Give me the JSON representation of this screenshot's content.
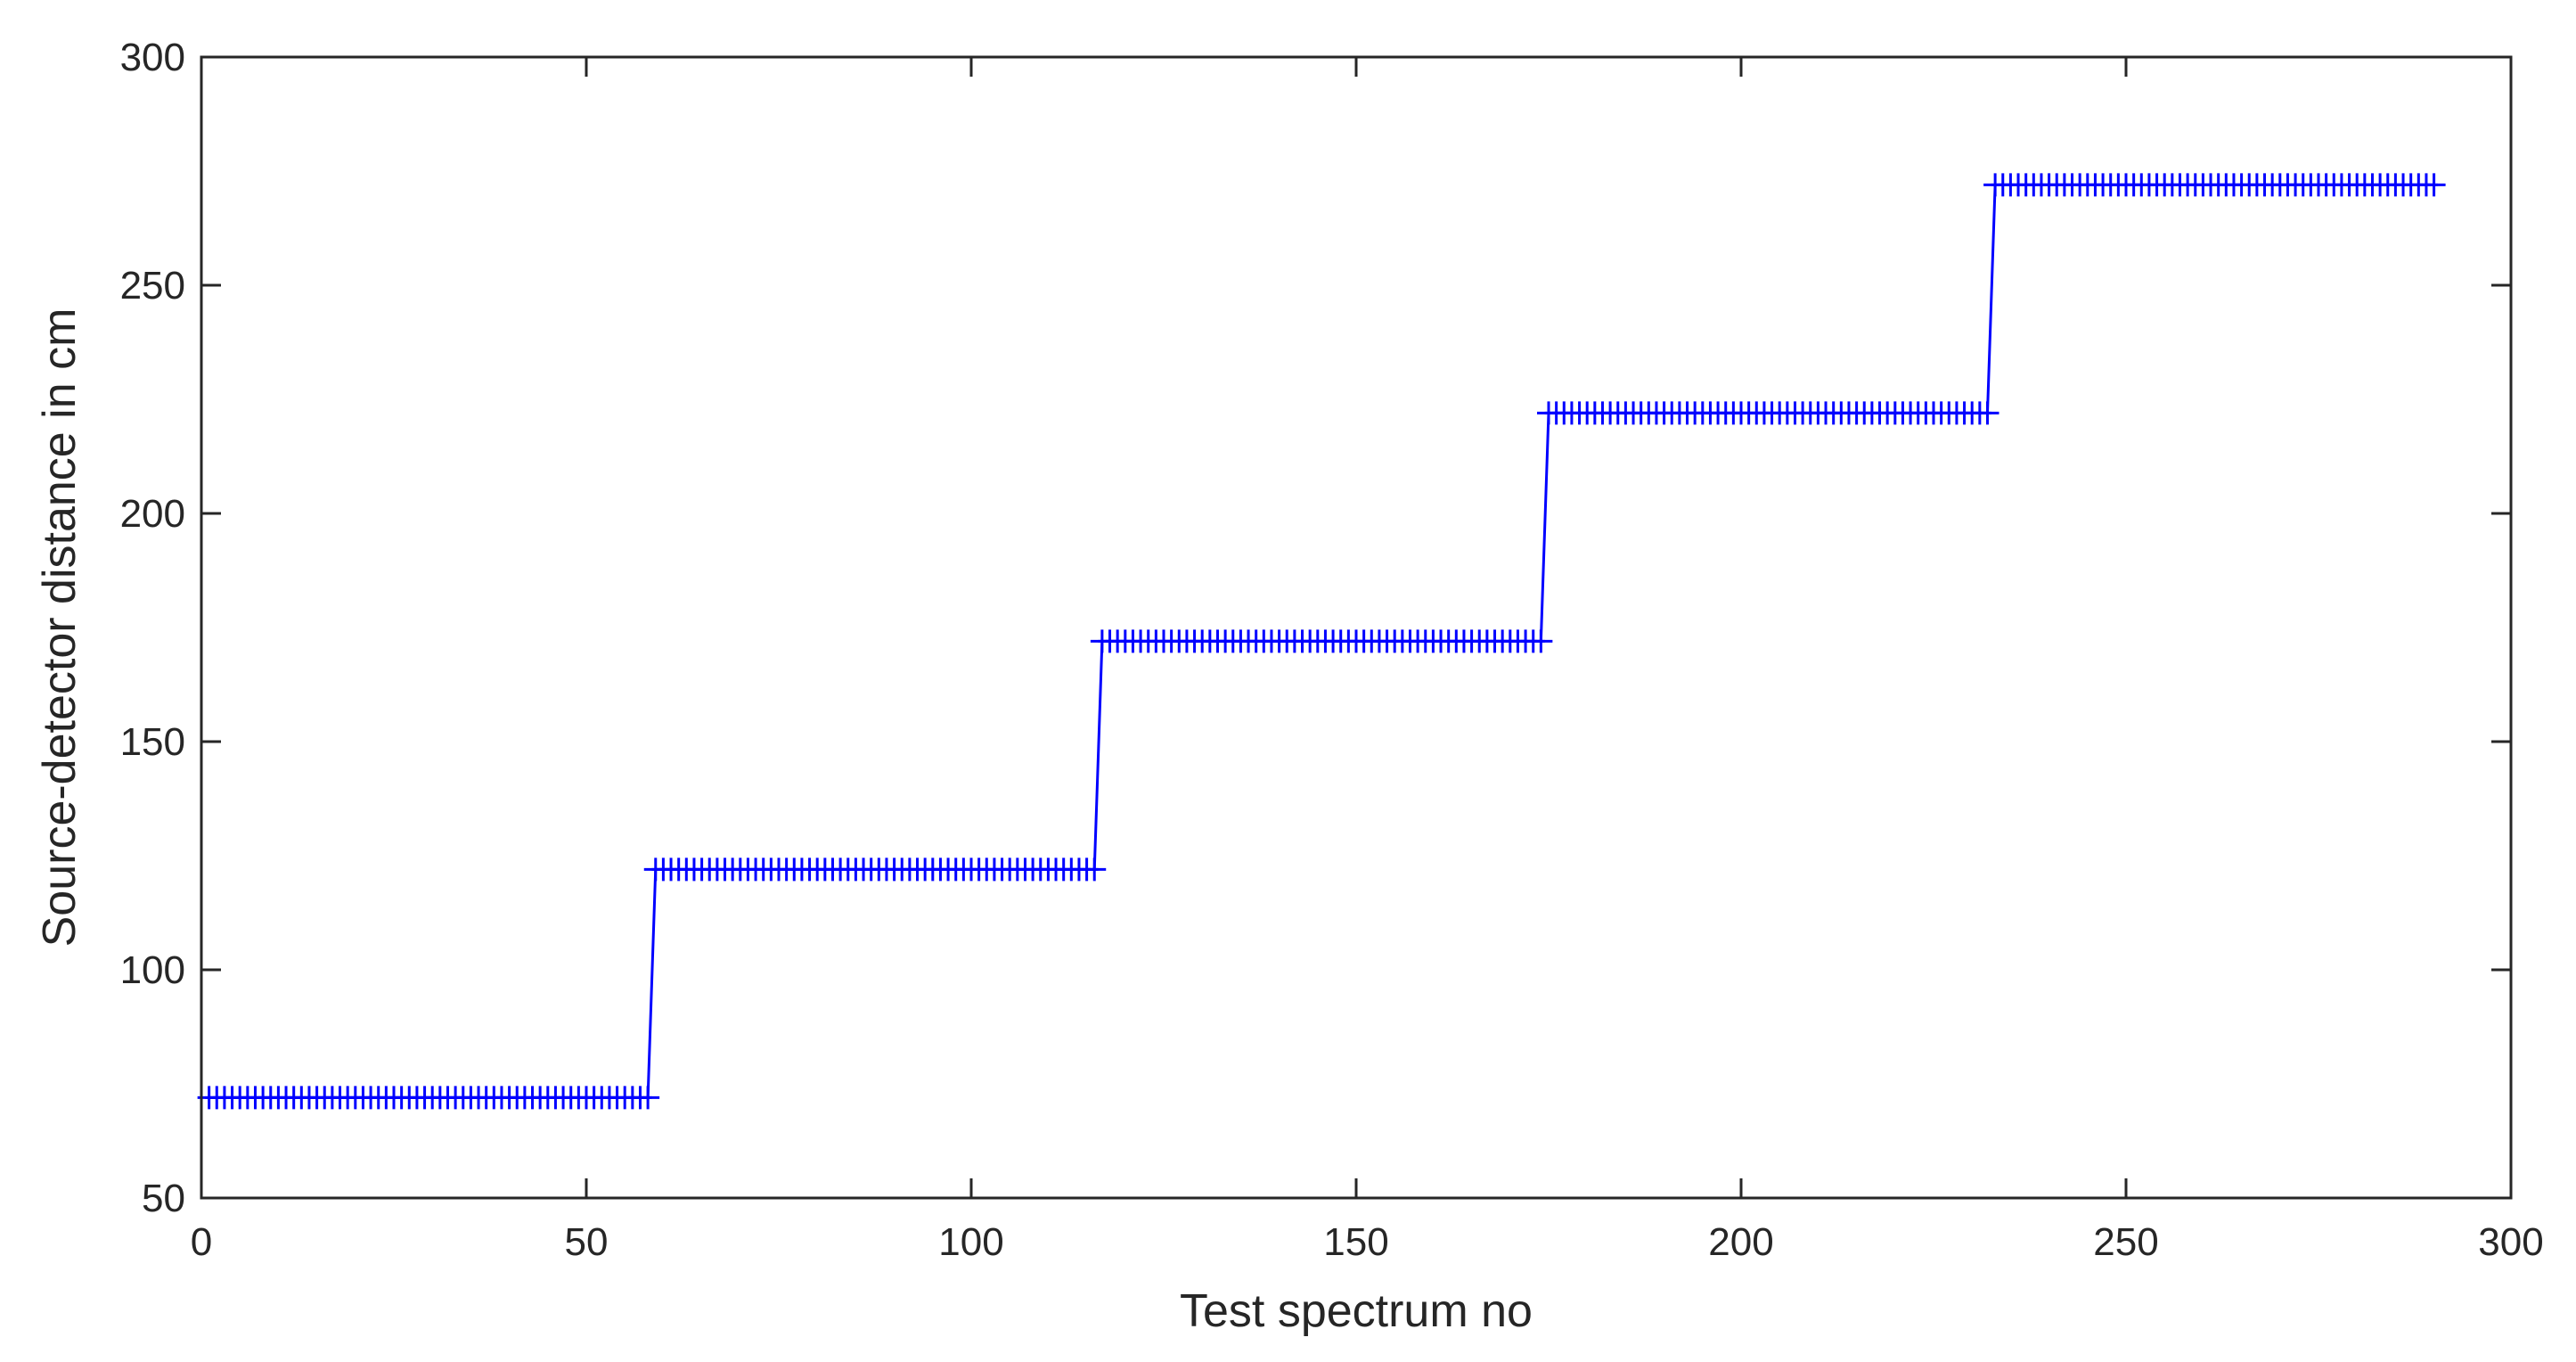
{
  "chart_data": {
    "type": "line",
    "title": "",
    "xlabel": "Test spectrum no",
    "ylabel": "Source-detector distance in cm",
    "xlim": [
      0,
      300
    ],
    "ylim": [
      50,
      300
    ],
    "xticks": [
      "0",
      "50",
      "100",
      "150",
      "200",
      "250",
      "300"
    ],
    "yticks": [
      "50",
      "100",
      "150",
      "200",
      "250",
      "300"
    ],
    "grid": false,
    "legend": "none",
    "marker": "plus",
    "color": "#0000ff",
    "series": [
      {
        "x_start": 1,
        "x_end": 290,
        "steps": [
          {
            "x_from": 1,
            "x_to": 58,
            "y": 72
          },
          {
            "x_from": 59,
            "x_to": 116,
            "y": 122
          },
          {
            "x_from": 117,
            "x_to": 174,
            "y": 172
          },
          {
            "x_from": 175,
            "x_to": 232,
            "y": 222
          },
          {
            "x_from": 233,
            "x_to": 290,
            "y": 272
          }
        ]
      }
    ]
  }
}
